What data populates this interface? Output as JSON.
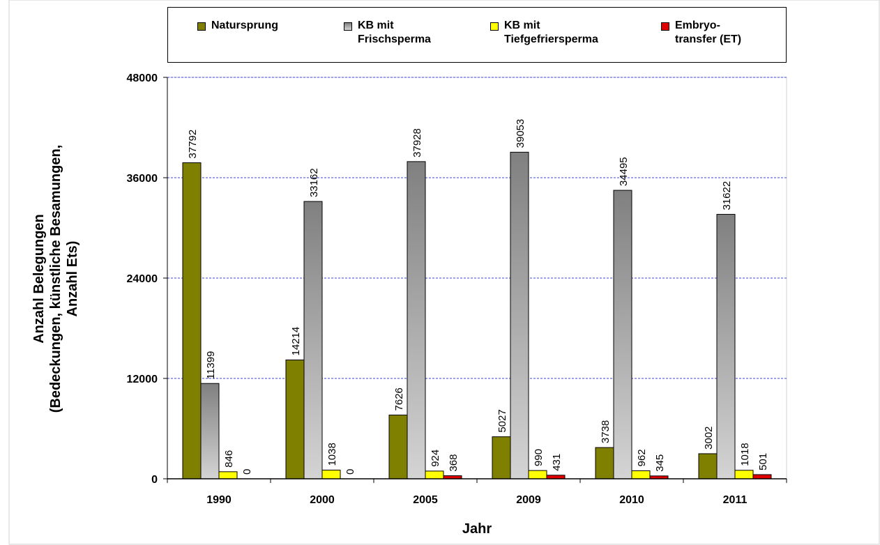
{
  "chart_data": {
    "type": "bar",
    "categories": [
      "1990",
      "2000",
      "2005",
      "2009",
      "2010",
      "2011"
    ],
    "series": [
      {
        "name": "Natursprung",
        "color": "#808000",
        "values": [
          37792,
          14214,
          7626,
          5027,
          3738,
          3002
        ]
      },
      {
        "name": "KB mit\nFrischsperma",
        "color": "#a0a0a0",
        "values": [
          11399,
          33162,
          37928,
          39053,
          34495,
          31622
        ]
      },
      {
        "name": "KB mit\nTiefgefriersperma",
        "color": "#ffff00",
        "values": [
          846,
          1038,
          924,
          990,
          962,
          1018
        ]
      },
      {
        "name": "Embryo-\ntransfer (ET)",
        "color": "#e00000",
        "values": [
          0,
          0,
          368,
          431,
          345,
          501
        ]
      }
    ],
    "ylabel": "Anzahl Belegungen\n(Bedeckungen, künstliche Besamungen,\nAnzahl Ets)",
    "xlabel": "Jahr",
    "ylim": [
      0,
      48000
    ],
    "yticks": [
      0,
      12000,
      24000,
      36000,
      48000
    ],
    "grid": true
  }
}
